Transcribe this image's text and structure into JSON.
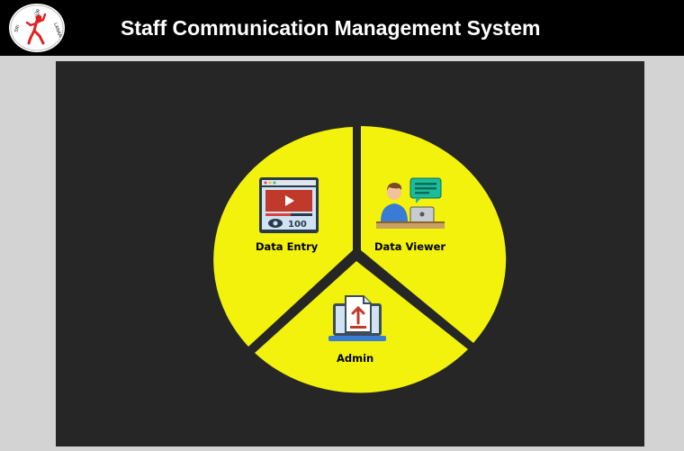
{
  "header": {
    "title": "Staff Communication Management System",
    "logo": {
      "top_text": "ශ්‍රී",
      "left_text": "SRI",
      "right_text": "LANKA"
    }
  },
  "menu": {
    "data_entry": {
      "label": "Data Entry",
      "icon": "video-dashboard-icon"
    },
    "data_viewer": {
      "label": "Data Viewer",
      "icon": "user-laptop-chat-icon"
    },
    "admin": {
      "label": "Admin",
      "icon": "laptop-upload-icon"
    }
  },
  "data_entry_icon_text": "100",
  "colors": {
    "header_bg": "#000000",
    "page_bg": "#d3d3d3",
    "panel_bg": "#262626",
    "pie_fill": "#f2f20c",
    "logo_red": "#e02020"
  }
}
